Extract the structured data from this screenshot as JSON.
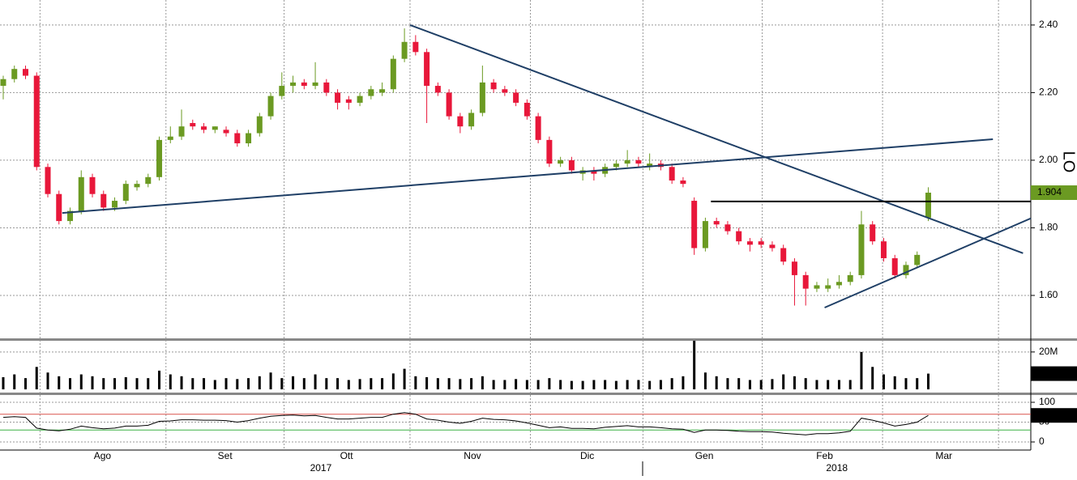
{
  "chart_data": {
    "type": "candlestick",
    "side_label": "LO",
    "xlim": [
      -0.29,
      92.2
    ],
    "xticks": [
      {
        "value": 8.9,
        "label": "Ago"
      },
      {
        "value": 19.9,
        "label": "Set"
      },
      {
        "value": 30.8,
        "label": "Ott"
      },
      {
        "value": 42.1,
        "label": "Nov"
      },
      {
        "value": 52.4,
        "label": "Dic"
      },
      {
        "value": 62.9,
        "label": "Gen"
      },
      {
        "value": 73.7,
        "label": "Feb"
      },
      {
        "value": 84.4,
        "label": "Mar"
      }
    ],
    "year_labels": [
      {
        "value": 28.5,
        "label": "2017"
      },
      {
        "value": 74.8,
        "label": "2018"
      }
    ],
    "xgrid": [
      3.3,
      14.6,
      25.2,
      36.5,
      47.3,
      57.4,
      68.1,
      78.9,
      89.3
    ],
    "ylim": [
      1.473,
      2.474
    ],
    "yticks": [
      {
        "value": 1.6,
        "label": "1.60"
      },
      {
        "value": 1.8,
        "label": "1.80"
      },
      {
        "value": 2.0,
        "label": "2.00"
      },
      {
        "value": 2.2,
        "label": "2.20"
      },
      {
        "value": 2.4,
        "label": "2.40"
      }
    ],
    "grid": true,
    "up_color": "#6b9a22",
    "down_color": "#e8173a",
    "open": [
      2.22,
      2.24,
      2.27,
      2.25,
      1.98,
      1.9,
      1.82,
      1.85,
      1.95,
      1.9,
      1.86,
      1.88,
      1.92,
      1.93,
      1.95,
      2.06,
      2.07,
      2.11,
      2.1,
      2.09,
      2.09,
      2.08,
      2.05,
      2.08,
      2.13,
      2.19,
      2.22,
      2.23,
      2.22,
      2.23,
      2.2,
      2.18,
      2.17,
      2.19,
      2.2,
      2.21,
      2.3,
      2.35,
      2.32,
      2.22,
      2.2,
      2.13,
      2.1,
      2.14,
      2.23,
      2.21,
      2.2,
      2.17,
      2.13,
      2.06,
      1.99,
      2.0,
      1.96,
      1.97,
      1.96,
      1.98,
      1.99,
      2.0,
      1.98,
      1.99,
      1.98,
      1.94,
      1.88,
      1.74,
      1.82,
      1.81,
      1.79,
      1.76,
      1.76,
      1.75,
      1.74,
      1.7,
      1.66,
      1.62,
      1.62,
      1.63,
      1.64,
      1.66,
      1.81,
      1.76,
      1.71,
      1.66,
      1.69,
      1.83
    ],
    "high": [
      2.25,
      2.28,
      2.28,
      2.26,
      1.99,
      1.91,
      1.86,
      1.97,
      1.96,
      1.91,
      1.89,
      1.94,
      1.94,
      1.96,
      2.07,
      2.1,
      2.15,
      2.12,
      2.11,
      2.1,
      2.1,
      2.09,
      2.09,
      2.14,
      2.2,
      2.26,
      2.25,
      2.24,
      2.29,
      2.24,
      2.21,
      2.19,
      2.2,
      2.22,
      2.23,
      2.31,
      2.39,
      2.37,
      2.33,
      2.23,
      2.21,
      2.14,
      2.15,
      2.28,
      2.24,
      2.22,
      2.21,
      2.18,
      2.14,
      2.07,
      2.01,
      2.01,
      1.98,
      1.98,
      1.99,
      2.0,
      2.03,
      2.01,
      2.02,
      2.0,
      1.99,
      1.95,
      1.89,
      1.83,
      1.83,
      1.82,
      1.8,
      1.77,
      1.77,
      1.76,
      1.75,
      1.71,
      1.67,
      1.64,
      1.65,
      1.66,
      1.67,
      1.85,
      1.82,
      1.77,
      1.72,
      1.7,
      1.73,
      1.92
    ],
    "low": [
      2.18,
      2.23,
      2.24,
      1.97,
      1.89,
      1.81,
      1.81,
      1.84,
      1.89,
      1.85,
      1.85,
      1.87,
      1.91,
      1.92,
      1.94,
      2.05,
      2.06,
      2.09,
      2.08,
      2.08,
      2.07,
      2.04,
      2.04,
      2.07,
      2.12,
      2.18,
      2.2,
      2.21,
      2.21,
      2.19,
      2.15,
      2.15,
      2.16,
      2.18,
      2.19,
      2.2,
      2.29,
      2.31,
      2.11,
      2.19,
      2.12,
      2.08,
      2.09,
      2.13,
      2.2,
      2.19,
      2.16,
      2.12,
      2.05,
      1.98,
      1.98,
      1.96,
      1.94,
      1.94,
      1.95,
      1.97,
      1.98,
      1.98,
      1.97,
      1.97,
      1.93,
      1.92,
      1.72,
      1.73,
      1.8,
      1.78,
      1.75,
      1.73,
      1.74,
      1.73,
      1.69,
      1.57,
      1.57,
      1.61,
      1.61,
      1.62,
      1.63,
      1.65,
      1.75,
      1.7,
      1.65,
      1.65,
      1.68,
      1.82
    ],
    "close": [
      2.24,
      2.27,
      2.25,
      1.98,
      1.9,
      1.82,
      1.85,
      1.95,
      1.9,
      1.86,
      1.88,
      1.93,
      1.93,
      1.95,
      2.06,
      2.07,
      2.1,
      2.1,
      2.09,
      2.1,
      2.08,
      2.05,
      2.08,
      2.13,
      2.19,
      2.22,
      2.23,
      2.22,
      2.23,
      2.2,
      2.17,
      2.17,
      2.19,
      2.21,
      2.21,
      2.3,
      2.35,
      2.32,
      2.22,
      2.2,
      2.13,
      2.1,
      2.14,
      2.23,
      2.21,
      2.2,
      2.17,
      2.13,
      2.06,
      1.99,
      2.0,
      1.97,
      1.97,
      1.96,
      1.98,
      1.99,
      2.0,
      1.99,
      1.99,
      1.98,
      1.94,
      1.93,
      1.74,
      1.82,
      1.81,
      1.79,
      1.76,
      1.75,
      1.75,
      1.74,
      1.7,
      1.66,
      1.62,
      1.63,
      1.63,
      1.64,
      1.66,
      1.81,
      1.76,
      1.71,
      1.66,
      1.69,
      1.72,
      1.904
    ],
    "trendlines": [
      {
        "color": "#1f3f66",
        "x": [
          5.3,
          88.8
        ],
        "y": [
          1.844,
          2.062
        ]
      },
      {
        "color": "#1f3f66",
        "x": [
          36.5,
          91.5
        ],
        "y": [
          2.4,
          1.725
        ]
      },
      {
        "color": "#1f3f66",
        "x": [
          73.7,
          92.2
        ],
        "y": [
          1.564,
          1.828
        ]
      },
      {
        "color": "#000000",
        "x": [
          63.5,
          92.2
        ],
        "y": [
          1.878,
          1.878
        ]
      }
    ],
    "volume": {
      "ylim": [
        0,
        26000000
      ],
      "yticks": [
        {
          "value": 20000000,
          "label": "20M"
        }
      ],
      "last_label": "8.416M",
      "values": [
        6500000,
        8000000,
        6000000,
        12000000,
        9000000,
        7000000,
        6000000,
        8000000,
        7000000,
        6000000,
        6000000,
        6500000,
        6000000,
        6000000,
        10000000,
        8000000,
        7000000,
        6000000,
        6000000,
        5000000,
        6000000,
        5500000,
        6000000,
        7000000,
        9000000,
        6000000,
        7000000,
        6000000,
        8000000,
        6000000,
        6000000,
        5000000,
        5500000,
        6000000,
        6000000,
        8500000,
        11000000,
        7000000,
        6500000,
        6000000,
        6000000,
        5500000,
        6000000,
        7000000,
        5000000,
        5000000,
        5500000,
        5000000,
        5000000,
        6000000,
        5000000,
        4500000,
        4500000,
        5000000,
        5000000,
        4500000,
        5000000,
        5000000,
        4500000,
        5000000,
        6000000,
        7000000,
        26000000,
        9000000,
        7000000,
        6000000,
        6000000,
        5000000,
        5000000,
        5500000,
        8000000,
        7000000,
        6000000,
        5000000,
        5000000,
        5000000,
        5000000,
        20000000,
        12000000,
        8000000,
        7000000,
        6000000,
        6000000,
        8416000
      ]
    },
    "rsi": {
      "ylim": [
        -20.4,
        118.4
      ],
      "yticks": [
        0,
        50,
        100
      ],
      "levels": [
        {
          "value": 70,
          "color": "#d9534f"
        },
        {
          "value": 30,
          "color": "#3cb043"
        }
      ],
      "values": [
        62,
        64,
        62,
        35,
        30,
        28,
        32,
        40,
        36,
        33,
        35,
        40,
        40,
        42,
        52,
        53,
        56,
        56,
        55,
        55,
        54,
        50,
        54,
        60,
        65,
        67,
        68,
        66,
        67,
        62,
        58,
        58,
        60,
        62,
        62,
        70,
        74,
        70,
        58,
        55,
        50,
        47,
        52,
        60,
        57,
        56,
        53,
        48,
        42,
        36,
        38,
        34,
        34,
        33,
        37,
        39,
        41,
        38,
        38,
        36,
        33,
        32,
        24,
        30,
        30,
        29,
        27,
        26,
        26,
        25,
        22,
        20,
        18,
        21,
        21,
        23,
        27,
        60,
        55,
        48,
        40,
        44,
        50,
        66.9374
      ]
    }
  }
}
